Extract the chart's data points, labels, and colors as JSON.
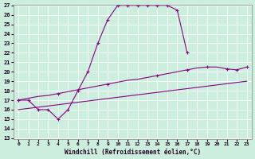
{
  "xlabel": "Windchill (Refroidissement éolien,°C)",
  "bg_color": "#cceedd",
  "line_color": "#880088",
  "xlim": [
    -0.5,
    23.5
  ],
  "ylim": [
    13,
    27
  ],
  "xticks": [
    0,
    1,
    2,
    3,
    4,
    5,
    6,
    7,
    8,
    9,
    10,
    11,
    12,
    13,
    14,
    15,
    16,
    17,
    18,
    19,
    20,
    21,
    22,
    23
  ],
  "yticks": [
    13,
    14,
    15,
    16,
    17,
    18,
    19,
    20,
    21,
    22,
    23,
    24,
    25,
    26,
    27
  ],
  "line1_x": [
    0,
    1,
    2,
    3,
    4,
    5,
    6,
    7,
    8,
    9,
    10,
    11,
    12,
    13,
    14,
    15,
    16,
    17
  ],
  "line1_y": [
    17,
    17,
    16,
    16,
    15,
    16,
    18,
    20,
    23,
    25.5,
    27,
    27,
    27,
    27,
    27,
    27,
    26.5,
    22
  ],
  "line2_x": [
    0,
    1,
    2,
    3,
    4,
    5,
    6,
    7,
    8,
    9,
    10,
    11,
    12,
    13,
    14,
    15,
    16,
    17,
    18,
    19,
    20,
    21,
    22,
    23
  ],
  "line2_y": [
    17,
    17.2,
    17.4,
    17.5,
    17.7,
    17.9,
    18.1,
    18.3,
    18.5,
    18.7,
    18.9,
    19.1,
    19.2,
    19.4,
    19.6,
    19.8,
    20.0,
    20.2,
    20.4,
    20.5,
    20.5,
    20.3,
    20.2,
    20.5
  ],
  "line2_marker_x": [
    0,
    4,
    9,
    14,
    17,
    19,
    21,
    22,
    23
  ],
  "line2_marker_y": [
    17,
    17.7,
    18.7,
    19.6,
    20.2,
    20.5,
    20.3,
    20.2,
    20.5
  ],
  "line3_x": [
    0,
    23
  ],
  "line3_y": [
    16,
    19
  ],
  "marker": "+"
}
